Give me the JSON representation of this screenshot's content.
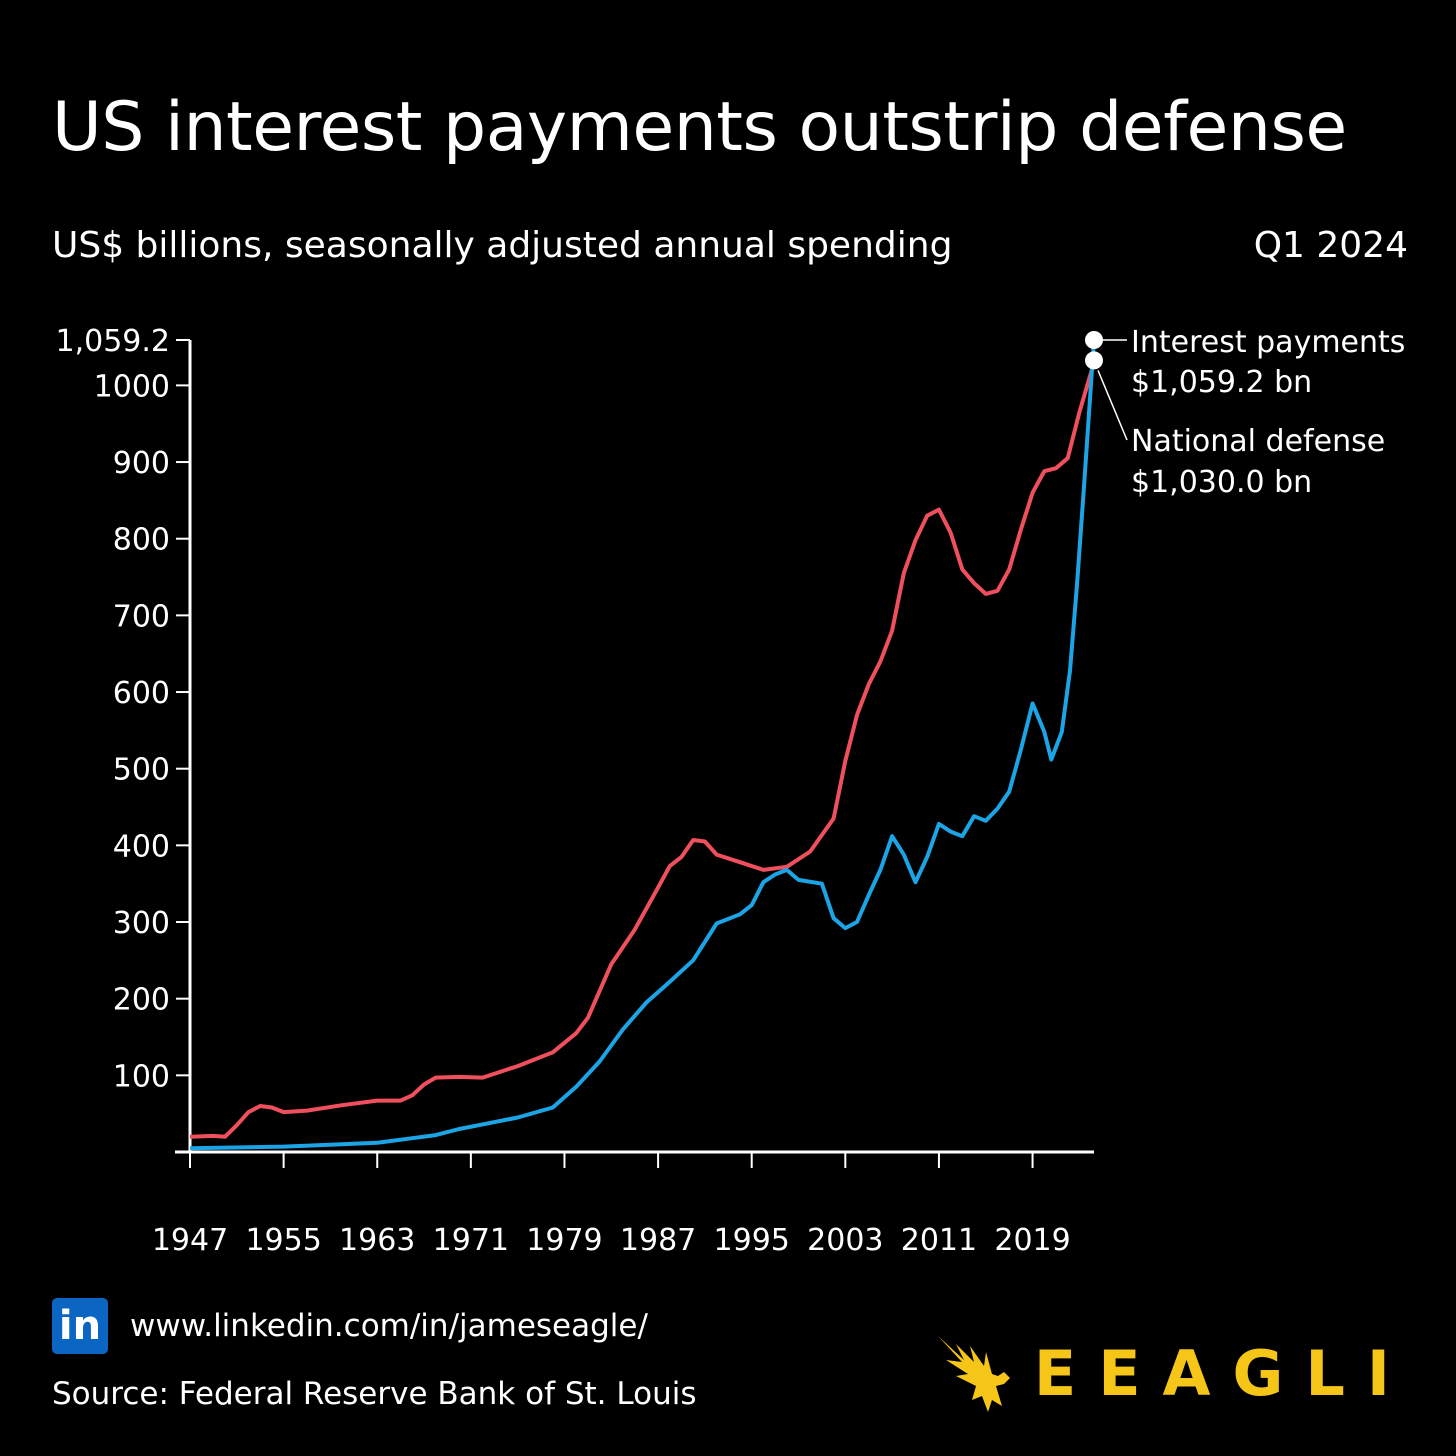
{
  "header": {
    "title": "US interest payments outstrip defense",
    "subtitle": "US$ billions, seasonally adjusted annual spending",
    "period": "Q1 2024"
  },
  "chart_data": {
    "type": "line",
    "title": "US interest payments outstrip defense",
    "subtitle": "US$ billions, seasonally adjusted annual spending",
    "xlim": [
      1947,
      2024.25
    ],
    "ylim": [
      0,
      1059.2
    ],
    "y_ticks": [
      100,
      200,
      300,
      400,
      500,
      600,
      700,
      800,
      900,
      1000
    ],
    "y_ticks_labels": [
      "100",
      "200",
      "300",
      "400",
      "500",
      "600",
      "700",
      "800",
      "900",
      "1000"
    ],
    "y_max_label": "1,059.2",
    "x_ticks": [
      1947,
      1955,
      1963,
      1971,
      1979,
      1987,
      1995,
      2003,
      2011,
      2019
    ],
    "x_ticks_labels": [
      "1947",
      "1955",
      "1963",
      "1971",
      "1979",
      "1987",
      "1995",
      "2003",
      "2011",
      "2019"
    ],
    "series": [
      {
        "name": "National defense",
        "color": "#f0505e",
        "points": [
          [
            1947,
            20
          ],
          [
            1949,
            21
          ],
          [
            1950,
            20
          ],
          [
            1951,
            35
          ],
          [
            1952,
            52
          ],
          [
            1953,
            60
          ],
          [
            1954,
            58
          ],
          [
            1955,
            52
          ],
          [
            1957,
            54
          ],
          [
            1960,
            61
          ],
          [
            1963,
            67
          ],
          [
            1965,
            67
          ],
          [
            1966,
            74
          ],
          [
            1967,
            88
          ],
          [
            1968,
            97
          ],
          [
            1970,
            98
          ],
          [
            1972,
            97
          ],
          [
            1975,
            112
          ],
          [
            1978,
            130
          ],
          [
            1980,
            155
          ],
          [
            1981,
            175
          ],
          [
            1983,
            245
          ],
          [
            1985,
            290
          ],
          [
            1987,
            345
          ],
          [
            1988,
            373
          ],
          [
            1989,
            385
          ],
          [
            1990,
            407
          ],
          [
            1991,
            405
          ],
          [
            1992,
            388
          ],
          [
            1994,
            378
          ],
          [
            1996,
            368
          ],
          [
            1998,
            372
          ],
          [
            2000,
            392
          ],
          [
            2002,
            435
          ],
          [
            2003,
            510
          ],
          [
            2004,
            570
          ],
          [
            2005,
            610
          ],
          [
            2006,
            640
          ],
          [
            2007,
            680
          ],
          [
            2008,
            755
          ],
          [
            2009,
            798
          ],
          [
            2010,
            830
          ],
          [
            2011,
            838
          ],
          [
            2012,
            808
          ],
          [
            2013,
            760
          ],
          [
            2014,
            742
          ],
          [
            2015,
            728
          ],
          [
            2016,
            732
          ],
          [
            2017,
            760
          ],
          [
            2018,
            812
          ],
          [
            2019,
            860
          ],
          [
            2020,
            888
          ],
          [
            2021,
            892
          ],
          [
            2022,
            905
          ],
          [
            2023,
            965
          ],
          [
            2024.25,
            1030
          ]
        ],
        "label": "National defense",
        "value_label": "$1,030.0 bn"
      },
      {
        "name": "Interest payments",
        "color": "#1ba5e6",
        "points": [
          [
            1947,
            5
          ],
          [
            1955,
            7
          ],
          [
            1960,
            10
          ],
          [
            1963,
            12
          ],
          [
            1966,
            18
          ],
          [
            1968,
            22
          ],
          [
            1970,
            30
          ],
          [
            1972,
            36
          ],
          [
            1975,
            45
          ],
          [
            1978,
            58
          ],
          [
            1980,
            85
          ],
          [
            1982,
            118
          ],
          [
            1984,
            160
          ],
          [
            1986,
            195
          ],
          [
            1988,
            222
          ],
          [
            1990,
            250
          ],
          [
            1992,
            298
          ],
          [
            1994,
            310
          ],
          [
            1995,
            322
          ],
          [
            1996,
            352
          ],
          [
            1997,
            362
          ],
          [
            1998,
            368
          ],
          [
            1999,
            355
          ],
          [
            2001,
            350
          ],
          [
            2002,
            305
          ],
          [
            2003,
            292
          ],
          [
            2004,
            300
          ],
          [
            2005,
            335
          ],
          [
            2006,
            368
          ],
          [
            2007,
            412
          ],
          [
            2008,
            388
          ],
          [
            2009,
            352
          ],
          [
            2010,
            385
          ],
          [
            2011,
            428
          ],
          [
            2012,
            418
          ],
          [
            2013,
            412
          ],
          [
            2014,
            438
          ],
          [
            2015,
            432
          ],
          [
            2016,
            448
          ],
          [
            2017,
            470
          ],
          [
            2018,
            525
          ],
          [
            2019,
            585
          ],
          [
            2020,
            548
          ],
          [
            2020.6,
            512
          ],
          [
            2021.5,
            548
          ],
          [
            2022.2,
            628
          ],
          [
            2022.8,
            740
          ],
          [
            2023.4,
            870
          ],
          [
            2024.25,
            1059.2
          ]
        ],
        "label": "Interest payments",
        "value_label": "$1,059.2 bn"
      }
    ]
  },
  "footer": {
    "linkedin_url": "www.linkedin.com/in/jameseagle/",
    "linkedin_icon_text": "in",
    "source": "Source: Federal Reserve Bank of St. Louis",
    "brand": "EEAGLI",
    "brand_color": "#f5c518",
    "linkedin_color": "#0a66c2"
  }
}
